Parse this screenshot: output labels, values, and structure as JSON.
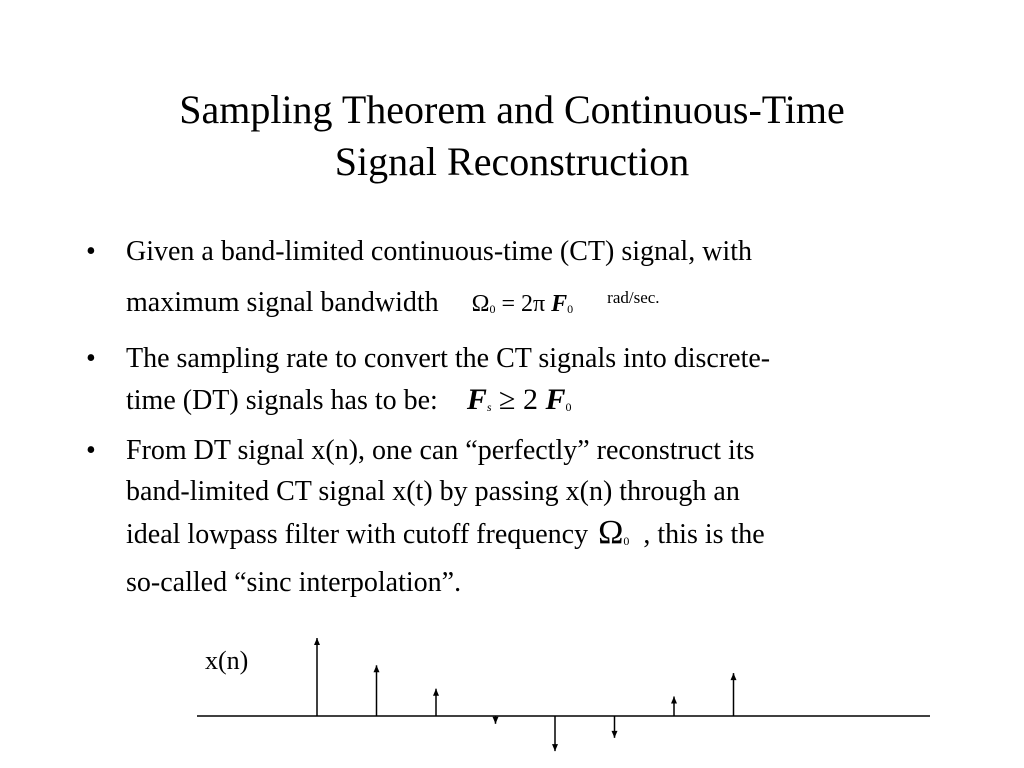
{
  "slide": {
    "title_line1": "Sampling Theorem and Continuous-Time",
    "title_line2": "Signal Reconstruction"
  },
  "bullets": [
    {
      "text_a": "Given a band-limited continuous-time (CT) signal, with",
      "text_b": "maximum signal bandwidth",
      "equation": {
        "lhs": "Ω",
        "lhs_sub": "0",
        "op": "= 2π",
        "var": "F",
        "var_sub": "0",
        "unit": "rad/sec."
      }
    },
    {
      "text_a": "The sampling rate to convert the CT signals into discrete-",
      "text_b": "time (DT) signals has to be:",
      "equation": {
        "lhs": "F",
        "lhs_sub": "s",
        "op": "≥ 2",
        "var": "F",
        "var_sub": "0"
      }
    },
    {
      "text_a": "From DT signal x(n), one can “perfectly” reconstruct its",
      "text_b": "band-limited CT signal x(t) by passing x(n) through an",
      "text_c": "ideal lowpass filter with cutoff frequency",
      "equation": {
        "sym": "Ω",
        "sym_sub": "0"
      },
      "text_d": ", this is the",
      "text_e": "so-called “sinc interpolation”."
    }
  ],
  "plot": {
    "label": "x(n)",
    "samples": [
      1.0,
      0.65,
      0.35,
      -0.1,
      -0.45,
      -0.28,
      0.25,
      0.55
    ]
  }
}
